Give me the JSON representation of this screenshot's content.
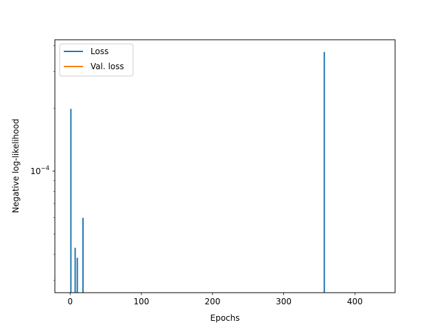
{
  "chart_data": {
    "type": "line",
    "title": "",
    "xlabel": "Epochs",
    "ylabel": "Negative log-likelihood",
    "yscale": "log",
    "xlim": [
      -21.5,
      456.5
    ],
    "ylim": [
      2.62e-05,
      0.000426
    ],
    "x_ticks": [
      0,
      100,
      200,
      300,
      400
    ],
    "x_tick_labels": [
      "0",
      "100",
      "200",
      "300",
      "400"
    ],
    "y_major_ticks": [
      {
        "value": 0.0001,
        "base": "10",
        "exp": "−4"
      }
    ],
    "y_minor_ticks": [
      3e-05,
      4e-05,
      5e-05,
      6e-05,
      7e-05,
      8e-05,
      9e-05,
      0.0002,
      0.0003,
      0.0004
    ],
    "legend": {
      "position": "top-left"
    },
    "series": [
      {
        "name": "Loss",
        "color": "#1f77b4",
        "spikes": [
          {
            "x": 1,
            "y": 0.000199
          },
          {
            "x": 7,
            "y": 4.3e-05
          },
          {
            "x": 10,
            "y": 3.85e-05
          },
          {
            "x": 18,
            "y": 5.98e-05
          },
          {
            "x": 357,
            "y": 0.000372
          }
        ]
      },
      {
        "name": "Val. loss",
        "color": "#ff7f0e",
        "spikes": []
      }
    ]
  }
}
